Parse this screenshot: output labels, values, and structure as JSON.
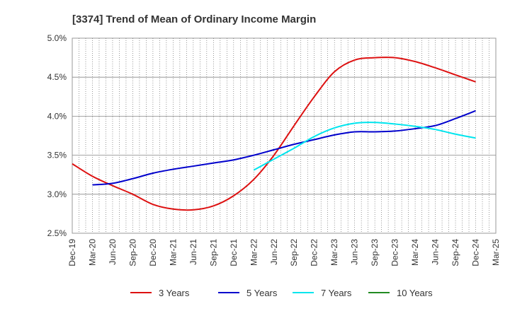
{
  "chart_data": {
    "type": "line",
    "title": "[3374]  Trend of Mean of Ordinary Income Margin",
    "xlabel": "",
    "ylabel": "",
    "ylim": [
      2.5,
      5.0
    ],
    "yticks": [
      "2.5%",
      "3.0%",
      "3.5%",
      "4.0%",
      "4.5%",
      "5.0%"
    ],
    "ytick_values": [
      2.5,
      3.0,
      3.5,
      4.0,
      4.5,
      5.0
    ],
    "categories": [
      "Dec-19",
      "Mar-20",
      "Jun-20",
      "Sep-20",
      "Dec-20",
      "Mar-21",
      "Jun-21",
      "Sep-21",
      "Dec-21",
      "Mar-22",
      "Jun-22",
      "Sep-22",
      "Dec-22",
      "Mar-23",
      "Jun-23",
      "Sep-23",
      "Dec-23",
      "Mar-24",
      "Jun-24",
      "Sep-24",
      "Dec-24",
      "Mar-25"
    ],
    "grid": true,
    "legend_position": "bottom",
    "series": [
      {
        "name": "3 Years",
        "color": "#dd1111",
        "values": [
          3.39,
          3.23,
          3.11,
          3.0,
          2.87,
          2.81,
          2.8,
          2.85,
          2.98,
          3.19,
          3.5,
          3.88,
          4.25,
          4.57,
          4.72,
          4.75,
          4.75,
          4.7,
          4.62,
          4.53,
          4.44,
          null
        ]
      },
      {
        "name": "5 Years",
        "color": "#0000cc",
        "values": [
          null,
          3.12,
          3.14,
          3.2,
          3.27,
          3.32,
          3.36,
          3.4,
          3.44,
          3.5,
          3.57,
          3.64,
          3.7,
          3.76,
          3.8,
          3.8,
          3.81,
          3.84,
          3.88,
          3.97,
          4.07,
          null
        ]
      },
      {
        "name": "7 Years",
        "color": "#00e5ee",
        "values": [
          null,
          null,
          null,
          null,
          null,
          null,
          null,
          null,
          null,
          3.31,
          3.45,
          3.59,
          3.74,
          3.85,
          3.91,
          3.92,
          3.9,
          3.87,
          3.83,
          3.77,
          3.72,
          null
        ]
      },
      {
        "name": "10 Years",
        "color": "#228b22",
        "values": [
          null,
          null,
          null,
          null,
          null,
          null,
          null,
          null,
          null,
          null,
          null,
          null,
          null,
          null,
          null,
          null,
          null,
          null,
          null,
          null,
          null,
          null
        ]
      }
    ]
  }
}
